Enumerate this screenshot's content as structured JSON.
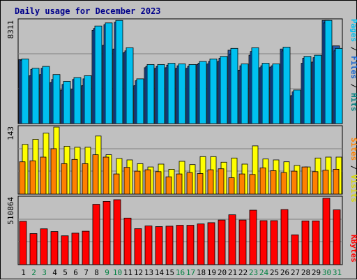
{
  "title": "Daily usage for December 2023",
  "colors": {
    "background": "#c0c0c0",
    "pages": "#2a5caa",
    "files": "#1060d0",
    "hits": "#00c0f0",
    "visits": "#ffff00",
    "sites": "#ff8000",
    "kbytes": "#ff0000",
    "title": "#00008b",
    "weekday_label": "#000000",
    "weekend_label": "#008040"
  },
  "chart_data": [
    {
      "type": "bar",
      "ylabel": "Pages / Files / Hits",
      "y_tick_label": "8311",
      "ylim": [
        0,
        8311
      ],
      "categories": [
        "1",
        "2",
        "3",
        "4",
        "5",
        "6",
        "7",
        "8",
        "9",
        "10",
        "11",
        "12",
        "13",
        "14",
        "15",
        "16",
        "17",
        "18",
        "19",
        "20",
        "21",
        "22",
        "23",
        "24",
        "25",
        "26",
        "27",
        "28",
        "29",
        "30",
        "31"
      ],
      "series": [
        {
          "name": "Pages",
          "values": [
            5150,
            3850,
            3950,
            3300,
            2700,
            2750,
            3050,
            7500,
            6300,
            6000,
            5700,
            3050,
            4500,
            4450,
            4500,
            4450,
            4450,
            4750,
            4800,
            5000,
            5900,
            4300,
            5500,
            4500,
            4550,
            6000,
            2250,
            4850,
            4950,
            8300,
            6250
          ]
        },
        {
          "name": "Files",
          "values": [
            5100,
            4350,
            4450,
            3550,
            3150,
            3550,
            3600,
            7650,
            7950,
            8150,
            5850,
            3450,
            4600,
            4600,
            4700,
            4650,
            4600,
            4850,
            5000,
            5250,
            5600,
            4650,
            5800,
            4650,
            4650,
            5850,
            2550,
            5250,
            5300,
            8100,
            5850
          ]
        },
        {
          "name": "Hits",
          "values": [
            5200,
            4450,
            4600,
            3950,
            3400,
            3700,
            3850,
            7850,
            8100,
            8300,
            6100,
            3600,
            4750,
            4750,
            4850,
            4800,
            4750,
            5000,
            5200,
            5400,
            6050,
            4800,
            6100,
            4850,
            4800,
            6150,
            2700,
            5400,
            5500,
            8300,
            6050
          ]
        }
      ]
    },
    {
      "type": "bar",
      "ylabel": "Sites / Visits",
      "y_tick_label": "143",
      "ylim": [
        0,
        143
      ],
      "categories": [
        "1",
        "2",
        "3",
        "4",
        "5",
        "6",
        "7",
        "8",
        "9",
        "10",
        "11",
        "12",
        "13",
        "14",
        "15",
        "16",
        "17",
        "18",
        "19",
        "20",
        "21",
        "22",
        "23",
        "24",
        "25",
        "26",
        "27",
        "28",
        "29",
        "30",
        "31"
      ],
      "series": [
        {
          "name": "Visits",
          "values": [
            106,
            117,
            130,
            143,
            102,
            100,
            100,
            124,
            84,
            76,
            73,
            65,
            58,
            64,
            53,
            70,
            63,
            80,
            80,
            68,
            77,
            64,
            103,
            75,
            73,
            69,
            61,
            58,
            77,
            79,
            79
          ]
        },
        {
          "name": "Sites",
          "values": [
            69,
            71,
            79,
            97,
            65,
            74,
            65,
            84,
            79,
            43,
            57,
            49,
            52,
            48,
            37,
            43,
            46,
            44,
            52,
            54,
            35,
            43,
            42,
            56,
            50,
            46,
            49,
            58,
            48,
            51,
            53
          ]
        }
      ]
    },
    {
      "type": "bar",
      "ylabel": "KBytes",
      "y_tick_label": "510864",
      "ylim": [
        0,
        510864
      ],
      "categories": [
        "1",
        "2",
        "3",
        "4",
        "5",
        "6",
        "7",
        "8",
        "9",
        "10",
        "11",
        "12",
        "13",
        "14",
        "15",
        "16",
        "17",
        "18",
        "19",
        "20",
        "21",
        "22",
        "23",
        "24",
        "25",
        "26",
        "27",
        "28",
        "29",
        "30",
        "31"
      ],
      "series": [
        {
          "name": "KBytes",
          "values": [
            330000,
            237000,
            273000,
            252000,
            220000,
            240000,
            255000,
            460000,
            482000,
            495000,
            355000,
            274000,
            295000,
            290000,
            293000,
            300000,
            300000,
            310000,
            320000,
            340000,
            380000,
            340000,
            415000,
            335000,
            335000,
            420000,
            227000,
            333000,
            333000,
            506000,
            418000
          ]
        }
      ]
    }
  ],
  "day_labels": [
    "1",
    "2",
    "3",
    "4",
    "5",
    "6",
    "7",
    "8",
    "9",
    "10",
    "11",
    "12",
    "13",
    "14",
    "15",
    "16",
    "17",
    "18",
    "19",
    "20",
    "21",
    "22",
    "23",
    "24",
    "25",
    "26",
    "27",
    "28",
    "29",
    "30",
    "31"
  ],
  "weekend_days": [
    "2",
    "3",
    "9",
    "10",
    "16",
    "17",
    "23",
    "24",
    "30",
    "31"
  ]
}
